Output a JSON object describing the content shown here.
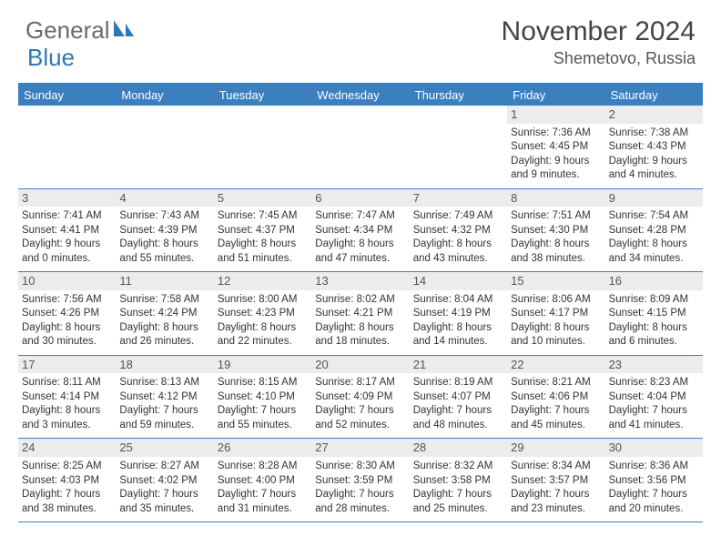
{
  "logo": {
    "text1": "General",
    "text2": "Blue",
    "color_gray": "#6b6b6b",
    "color_blue": "#2f77b8"
  },
  "title": "November 2024",
  "location": "Shemetovo, Russia",
  "header_bar_color": "#3b7fbf",
  "num_bg": "#ececec",
  "daynames": [
    "Sunday",
    "Monday",
    "Tuesday",
    "Wednesday",
    "Thursday",
    "Friday",
    "Saturday"
  ],
  "weeks": [
    [
      {
        "n": "",
        "sr": "",
        "ss": "",
        "d1": "",
        "d2": ""
      },
      {
        "n": "",
        "sr": "",
        "ss": "",
        "d1": "",
        "d2": ""
      },
      {
        "n": "",
        "sr": "",
        "ss": "",
        "d1": "",
        "d2": ""
      },
      {
        "n": "",
        "sr": "",
        "ss": "",
        "d1": "",
        "d2": ""
      },
      {
        "n": "",
        "sr": "",
        "ss": "",
        "d1": "",
        "d2": ""
      },
      {
        "n": "1",
        "sr": "Sunrise: 7:36 AM",
        "ss": "Sunset: 4:45 PM",
        "d1": "Daylight: 9 hours",
        "d2": "and 9 minutes."
      },
      {
        "n": "2",
        "sr": "Sunrise: 7:38 AM",
        "ss": "Sunset: 4:43 PM",
        "d1": "Daylight: 9 hours",
        "d2": "and 4 minutes."
      }
    ],
    [
      {
        "n": "3",
        "sr": "Sunrise: 7:41 AM",
        "ss": "Sunset: 4:41 PM",
        "d1": "Daylight: 9 hours",
        "d2": "and 0 minutes."
      },
      {
        "n": "4",
        "sr": "Sunrise: 7:43 AM",
        "ss": "Sunset: 4:39 PM",
        "d1": "Daylight: 8 hours",
        "d2": "and 55 minutes."
      },
      {
        "n": "5",
        "sr": "Sunrise: 7:45 AM",
        "ss": "Sunset: 4:37 PM",
        "d1": "Daylight: 8 hours",
        "d2": "and 51 minutes."
      },
      {
        "n": "6",
        "sr": "Sunrise: 7:47 AM",
        "ss": "Sunset: 4:34 PM",
        "d1": "Daylight: 8 hours",
        "d2": "and 47 minutes."
      },
      {
        "n": "7",
        "sr": "Sunrise: 7:49 AM",
        "ss": "Sunset: 4:32 PM",
        "d1": "Daylight: 8 hours",
        "d2": "and 43 minutes."
      },
      {
        "n": "8",
        "sr": "Sunrise: 7:51 AM",
        "ss": "Sunset: 4:30 PM",
        "d1": "Daylight: 8 hours",
        "d2": "and 38 minutes."
      },
      {
        "n": "9",
        "sr": "Sunrise: 7:54 AM",
        "ss": "Sunset: 4:28 PM",
        "d1": "Daylight: 8 hours",
        "d2": "and 34 minutes."
      }
    ],
    [
      {
        "n": "10",
        "sr": "Sunrise: 7:56 AM",
        "ss": "Sunset: 4:26 PM",
        "d1": "Daylight: 8 hours",
        "d2": "and 30 minutes."
      },
      {
        "n": "11",
        "sr": "Sunrise: 7:58 AM",
        "ss": "Sunset: 4:24 PM",
        "d1": "Daylight: 8 hours",
        "d2": "and 26 minutes."
      },
      {
        "n": "12",
        "sr": "Sunrise: 8:00 AM",
        "ss": "Sunset: 4:23 PM",
        "d1": "Daylight: 8 hours",
        "d2": "and 22 minutes."
      },
      {
        "n": "13",
        "sr": "Sunrise: 8:02 AM",
        "ss": "Sunset: 4:21 PM",
        "d1": "Daylight: 8 hours",
        "d2": "and 18 minutes."
      },
      {
        "n": "14",
        "sr": "Sunrise: 8:04 AM",
        "ss": "Sunset: 4:19 PM",
        "d1": "Daylight: 8 hours",
        "d2": "and 14 minutes."
      },
      {
        "n": "15",
        "sr": "Sunrise: 8:06 AM",
        "ss": "Sunset: 4:17 PM",
        "d1": "Daylight: 8 hours",
        "d2": "and 10 minutes."
      },
      {
        "n": "16",
        "sr": "Sunrise: 8:09 AM",
        "ss": "Sunset: 4:15 PM",
        "d1": "Daylight: 8 hours",
        "d2": "and 6 minutes."
      }
    ],
    [
      {
        "n": "17",
        "sr": "Sunrise: 8:11 AM",
        "ss": "Sunset: 4:14 PM",
        "d1": "Daylight: 8 hours",
        "d2": "and 3 minutes."
      },
      {
        "n": "18",
        "sr": "Sunrise: 8:13 AM",
        "ss": "Sunset: 4:12 PM",
        "d1": "Daylight: 7 hours",
        "d2": "and 59 minutes."
      },
      {
        "n": "19",
        "sr": "Sunrise: 8:15 AM",
        "ss": "Sunset: 4:10 PM",
        "d1": "Daylight: 7 hours",
        "d2": "and 55 minutes."
      },
      {
        "n": "20",
        "sr": "Sunrise: 8:17 AM",
        "ss": "Sunset: 4:09 PM",
        "d1": "Daylight: 7 hours",
        "d2": "and 52 minutes."
      },
      {
        "n": "21",
        "sr": "Sunrise: 8:19 AM",
        "ss": "Sunset: 4:07 PM",
        "d1": "Daylight: 7 hours",
        "d2": "and 48 minutes."
      },
      {
        "n": "22",
        "sr": "Sunrise: 8:21 AM",
        "ss": "Sunset: 4:06 PM",
        "d1": "Daylight: 7 hours",
        "d2": "and 45 minutes."
      },
      {
        "n": "23",
        "sr": "Sunrise: 8:23 AM",
        "ss": "Sunset: 4:04 PM",
        "d1": "Daylight: 7 hours",
        "d2": "and 41 minutes."
      }
    ],
    [
      {
        "n": "24",
        "sr": "Sunrise: 8:25 AM",
        "ss": "Sunset: 4:03 PM",
        "d1": "Daylight: 7 hours",
        "d2": "and 38 minutes."
      },
      {
        "n": "25",
        "sr": "Sunrise: 8:27 AM",
        "ss": "Sunset: 4:02 PM",
        "d1": "Daylight: 7 hours",
        "d2": "and 35 minutes."
      },
      {
        "n": "26",
        "sr": "Sunrise: 8:28 AM",
        "ss": "Sunset: 4:00 PM",
        "d1": "Daylight: 7 hours",
        "d2": "and 31 minutes."
      },
      {
        "n": "27",
        "sr": "Sunrise: 8:30 AM",
        "ss": "Sunset: 3:59 PM",
        "d1": "Daylight: 7 hours",
        "d2": "and 28 minutes."
      },
      {
        "n": "28",
        "sr": "Sunrise: 8:32 AM",
        "ss": "Sunset: 3:58 PM",
        "d1": "Daylight: 7 hours",
        "d2": "and 25 minutes."
      },
      {
        "n": "29",
        "sr": "Sunrise: 8:34 AM",
        "ss": "Sunset: 3:57 PM",
        "d1": "Daylight: 7 hours",
        "d2": "and 23 minutes."
      },
      {
        "n": "30",
        "sr": "Sunrise: 8:36 AM",
        "ss": "Sunset: 3:56 PM",
        "d1": "Daylight: 7 hours",
        "d2": "and 20 minutes."
      }
    ]
  ]
}
